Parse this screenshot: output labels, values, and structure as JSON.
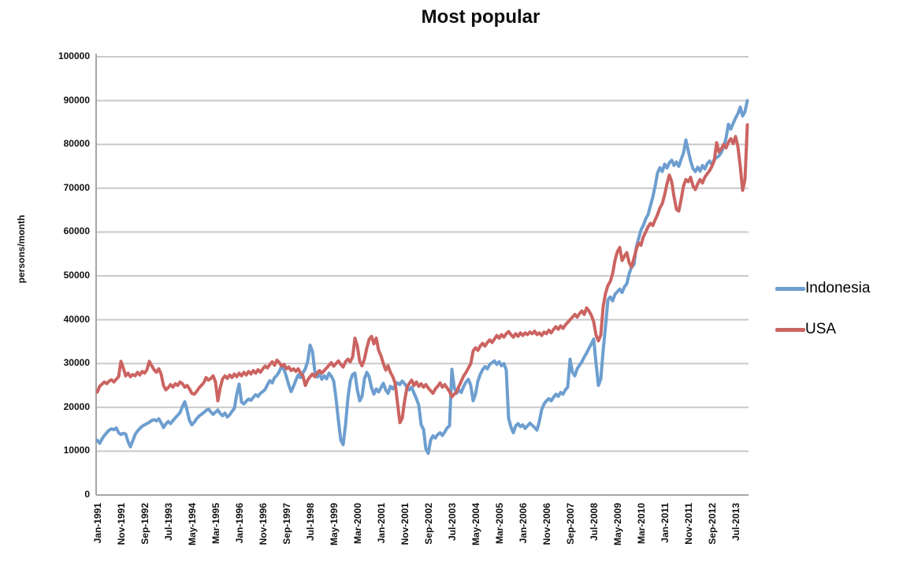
{
  "title": "Most popular",
  "axes": {
    "y_title": "persons/month",
    "y_tick_labels": [
      "0",
      "10000",
      "20000",
      "30000",
      "40000",
      "50000",
      "60000",
      "70000",
      "80000",
      "90000",
      "100000"
    ]
  },
  "legend": {
    "items": [
      {
        "label": "Indonesia",
        "color": "#6D9ECF"
      },
      {
        "label": "USA",
        "color": "#CB6461"
      }
    ]
  },
  "chart_data": {
    "type": "line",
    "title": "Most popular",
    "xlabel": "",
    "ylabel": "persons/month",
    "ylim": [
      0,
      100000
    ],
    "ytick_step": 10000,
    "grid": true,
    "legend_position": "right",
    "x_unit": "month",
    "x_start": "Jan-1991",
    "x_end": "Dec-2013",
    "x_tick_every": 10,
    "x_tick_labels": [
      "Jan-1991",
      "Nov-1991",
      "Sep-1992",
      "Jul-1993",
      "May-1994",
      "Mar-1995",
      "Jan-1996",
      "Nov-1996",
      "Sep-1997",
      "Jul-1998",
      "May-1999",
      "Mar-2000",
      "Jan-2001",
      "Nov-2001",
      "Sep-2002",
      "Jul-2003",
      "May-2004",
      "Mar-2005",
      "Jan-2006",
      "Nov-2006",
      "Sep-2007",
      "Jul-2008",
      "May-2009",
      "Mar-2010",
      "Jan-2011",
      "Nov-2011",
      "Sep-2012",
      "Jul-2013"
    ],
    "series": [
      {
        "name": "Indonesia",
        "color": "#6D9ECF",
        "values": [
          12500,
          11800,
          12800,
          13600,
          14200,
          14800,
          15100,
          14900,
          15300,
          14200,
          13800,
          14100,
          13900,
          12200,
          11000,
          12400,
          13800,
          14600,
          15200,
          15700,
          16000,
          16300,
          16600,
          17000,
          17200,
          16900,
          17400,
          16500,
          15400,
          16200,
          16800,
          16300,
          17000,
          17600,
          18200,
          18800,
          20200,
          21300,
          19300,
          17000,
          16000,
          16600,
          17400,
          18000,
          18400,
          18800,
          19300,
          19600,
          19000,
          18400,
          18900,
          19400,
          18600,
          18100,
          18700,
          17800,
          18300,
          19100,
          19800,
          23000,
          25300,
          21200,
          20800,
          21400,
          21900,
          21600,
          22300,
          22900,
          22500,
          23200,
          23600,
          24100,
          25200,
          26100,
          25600,
          26800,
          27300,
          28200,
          29400,
          28600,
          27000,
          25100,
          23600,
          24800,
          26200,
          27400,
          26800,
          27900,
          28800,
          30500,
          34200,
          32800,
          28300,
          26900,
          27600,
          26400,
          27200,
          26500,
          27800,
          27100,
          26000,
          22000,
          17000,
          12500,
          11500,
          16000,
          22000,
          26000,
          27500,
          27800,
          24000,
          21500,
          22500,
          26500,
          28000,
          27000,
          24500,
          23000,
          24200,
          23500,
          24500,
          25500,
          24000,
          23200,
          24800,
          24200,
          25000,
          25600,
          25200,
          26000,
          25400,
          24600,
          24000,
          24600,
          23200,
          22000,
          20500,
          16000,
          15000,
          10500,
          9500,
          12500,
          13500,
          13000,
          13800,
          14200,
          13600,
          14400,
          15300,
          15800,
          28700,
          24500,
          23200,
          24000,
          23400,
          24800,
          25800,
          26400,
          25000,
          21500,
          23000,
          26000,
          27500,
          28600,
          29300,
          28800,
          29800,
          30200,
          30600,
          29800,
          30400,
          29500,
          30000,
          28500,
          17500,
          15500,
          14200,
          15800,
          16300,
          15600,
          16000,
          15200,
          15800,
          16400,
          15900,
          15400,
          14800,
          16800,
          19500,
          20800,
          21500,
          22000,
          21500,
          22300,
          23000,
          22500,
          23400,
          23000,
          24000,
          24600,
          31000,
          28000,
          27200,
          28800,
          29600,
          30400,
          31500,
          32400,
          33500,
          34500,
          35600,
          30000,
          25000,
          26500,
          33000,
          38500,
          44500,
          45200,
          44300,
          45800,
          46400,
          47000,
          46200,
          47500,
          48200,
          50500,
          52000,
          52500,
          56500,
          58500,
          60500,
          61500,
          63000,
          64000,
          66000,
          68000,
          70500,
          73500,
          74700,
          73800,
          75500,
          74600,
          75800,
          76400,
          75200,
          76000,
          75000,
          76600,
          78100,
          81000,
          78500,
          76200,
          74500,
          73800,
          74800,
          73900,
          75200,
          74400,
          75600,
          76200,
          75400,
          76600,
          77000,
          77400,
          78200,
          79500,
          81500,
          84600,
          83500,
          84800,
          86000,
          87000,
          88500,
          86500,
          87500,
          90000
        ]
      },
      {
        "name": "USA",
        "color": "#CB6461",
        "values": [
          23500,
          24800,
          25300,
          25800,
          25400,
          26000,
          26300,
          25800,
          26400,
          27000,
          30500,
          29000,
          27200,
          27800,
          27000,
          27500,
          27200,
          28000,
          27400,
          28200,
          27800,
          28600,
          30500,
          29500,
          28600,
          28000,
          28800,
          27600,
          25000,
          24000,
          24500,
          25200,
          24600,
          25400,
          25000,
          25800,
          25400,
          24600,
          25000,
          24200,
          23200,
          23000,
          23600,
          24400,
          25000,
          25600,
          26800,
          26200,
          26600,
          27200,
          25800,
          21500,
          24500,
          26500,
          27200,
          26600,
          27400,
          26800,
          27600,
          27000,
          27800,
          27200,
          28000,
          27400,
          28200,
          27600,
          28400,
          27800,
          28600,
          28000,
          28800,
          29400,
          29000,
          29800,
          30400,
          29600,
          30800,
          30200,
          29400,
          29800,
          28800,
          29200,
          28400,
          28800,
          28200,
          28800,
          27800,
          27200,
          25000,
          26200,
          27000,
          27600,
          27000,
          27800,
          28400,
          27800,
          28400,
          29000,
          29600,
          30200,
          29400,
          30000,
          30600,
          29800,
          29200,
          30400,
          31000,
          30400,
          31500,
          35800,
          34000,
          30500,
          29500,
          31000,
          33500,
          35500,
          36200,
          34500,
          35800,
          33000,
          31800,
          30000,
          28500,
          29500,
          28000,
          27000,
          25500,
          21000,
          16500,
          17500,
          21500,
          24500,
          25500,
          26200,
          25000,
          25800,
          24800,
          25400,
          24600,
          25200,
          24400,
          23800,
          23200,
          24200,
          24800,
          25600,
          24600,
          25200,
          24400,
          23600,
          22400,
          23000,
          23600,
          24800,
          26000,
          27200,
          28000,
          29000,
          30000,
          32900,
          33600,
          33000,
          34000,
          34600,
          34000,
          34800,
          35400,
          34800,
          35600,
          36400,
          35800,
          36600,
          36000,
          36800,
          37300,
          36600,
          36000,
          36800,
          36200,
          37000,
          36400,
          37000,
          36600,
          37200,
          36800,
          37400,
          36600,
          37000,
          36400,
          37200,
          36800,
          37600,
          37000,
          37800,
          38400,
          37800,
          38600,
          38000,
          38800,
          39400,
          40000,
          40600,
          41200,
          40600,
          41400,
          42000,
          41200,
          42700,
          42000,
          41000,
          39500,
          36500,
          35200,
          36500,
          43000,
          46000,
          47800,
          48700,
          50500,
          53500,
          55500,
          56500,
          53500,
          54500,
          55300,
          53000,
          52000,
          54000,
          56000,
          57500,
          57000,
          58900,
          60000,
          61200,
          62000,
          61500,
          62800,
          64000,
          65500,
          66500,
          68500,
          71000,
          73000,
          71500,
          68000,
          65200,
          64800,
          67500,
          70500,
          72000,
          71500,
          72500,
          70500,
          69700,
          71000,
          72000,
          71200,
          72500,
          73300,
          74000,
          75000,
          76300,
          80400,
          78300,
          79000,
          80000,
          79200,
          80500,
          81300,
          80200,
          81800,
          79500,
          75000,
          69500,
          72000,
          84500
        ]
      }
    ]
  },
  "style": {
    "gridline_color": "#C9C9C9",
    "axis_color": "#A6A6A6",
    "background": "#FFFFFF"
  }
}
